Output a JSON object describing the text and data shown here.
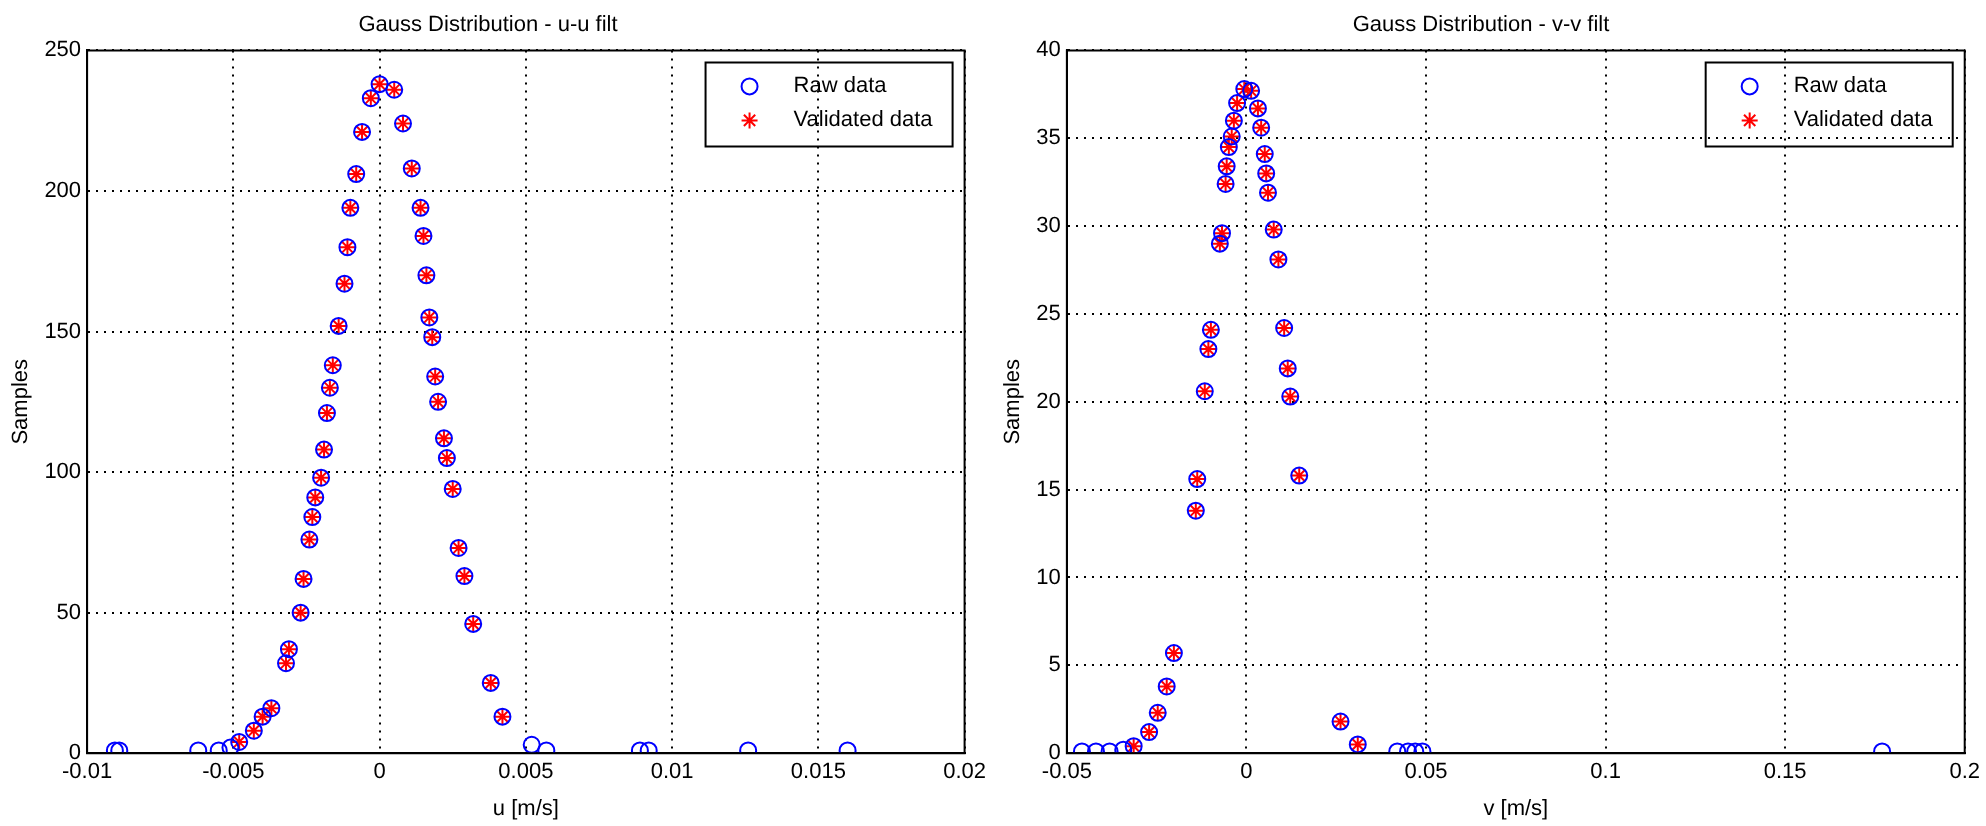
{
  "chart_data": [
    {
      "type": "scatter",
      "title": "Gauss Distribution - u-u filt",
      "xlabel": "u [m/s]",
      "ylabel": "Samples",
      "xlim": [
        -0.01,
        0.02
      ],
      "xticks": [
        -0.01,
        -0.005,
        0,
        0.005,
        0.01,
        0.015,
        0.02
      ],
      "ylim": [
        0,
        250
      ],
      "yticks": [
        0,
        50,
        100,
        150,
        200,
        250
      ],
      "grid": true,
      "legend": "top right",
      "series": [
        {
          "name": "Raw data",
          "color": "#0000ff",
          "marker": "circle",
          "x": [
            -0.00905,
            -0.0089,
            -0.0062,
            -0.0055,
            -0.0051,
            -0.0048,
            -0.0043,
            -0.004,
            -0.0037,
            -0.0032,
            -0.0031,
            -0.0027,
            -0.0026,
            -0.0024,
            -0.0023,
            -0.0022,
            -0.002,
            -0.0019,
            -0.0018,
            -0.0017,
            -0.0016,
            -0.0014,
            -0.0012,
            -0.0011,
            -0.001,
            -0.0008,
            -0.0006,
            -0.0003,
            0,
            0.0005,
            0.0008,
            0.0011,
            0.0014,
            0.0015,
            0.0016,
            0.0017,
            0.0018,
            0.0019,
            0.002,
            0.0022,
            0.0023,
            0.0025,
            0.0027,
            0.0029,
            0.0032,
            0.0038,
            0.0042,
            0.0052,
            0.0057,
            0.0089,
            0.0092,
            0.0126,
            0.016
          ],
          "values": [
            1,
            1,
            1,
            1,
            2,
            4,
            8,
            13,
            16,
            32,
            37,
            50,
            62,
            76,
            84,
            91,
            98,
            108,
            121,
            130,
            138,
            152,
            167,
            180,
            194,
            206,
            221,
            233,
            238,
            236,
            224,
            208,
            194,
            184,
            170,
            155,
            148,
            134,
            125,
            112,
            105,
            94,
            73,
            63,
            46,
            25,
            13,
            3,
            1,
            1,
            1,
            1,
            1
          ]
        },
        {
          "name": "Validated data",
          "color": "#ff0000",
          "marker": "cross",
          "x": [
            -0.0048,
            -0.0043,
            -0.004,
            -0.0037,
            -0.0032,
            -0.0031,
            -0.0027,
            -0.0026,
            -0.0024,
            -0.0023,
            -0.0022,
            -0.002,
            -0.0019,
            -0.0018,
            -0.0017,
            -0.0016,
            -0.0014,
            -0.0012,
            -0.0011,
            -0.001,
            -0.0008,
            -0.0006,
            -0.0003,
            0,
            0.0005,
            0.0008,
            0.0011,
            0.0014,
            0.0015,
            0.0016,
            0.0017,
            0.0018,
            0.0019,
            0.002,
            0.0022,
            0.0023,
            0.0025,
            0.0027,
            0.0029,
            0.0032,
            0.0038,
            0.0042
          ],
          "values": [
            4,
            8,
            13,
            16,
            32,
            37,
            50,
            62,
            76,
            84,
            91,
            98,
            108,
            121,
            130,
            138,
            152,
            167,
            180,
            194,
            206,
            221,
            233,
            238,
            236,
            224,
            208,
            194,
            184,
            170,
            155,
            148,
            134,
            125,
            112,
            105,
            94,
            73,
            63,
            46,
            25,
            13
          ]
        }
      ]
    },
    {
      "type": "scatter",
      "title": "Gauss Distribution - v-v filt",
      "xlabel": "v [m/s]",
      "ylabel": "Samples",
      "xlim": [
        -0.05,
        0.2
      ],
      "xticks": [
        -0.05,
        0,
        0.05,
        0.1,
        0.15,
        0.2
      ],
      "ylim": [
        0,
        40
      ],
      "yticks": [
        0,
        5,
        10,
        15,
        20,
        25,
        30,
        35,
        40
      ],
      "grid": true,
      "legend": "top right",
      "series": [
        {
          "name": "Raw data",
          "color": "#0000ff",
          "marker": "circle",
          "x": [
            -0.0458,
            -0.0419,
            -0.0381,
            -0.0343,
            -0.0314,
            -0.0271,
            -0.0247,
            -0.0222,
            -0.0202,
            -0.0141,
            -0.0137,
            -0.0116,
            -0.0106,
            -0.0099,
            -0.0074,
            -0.0068,
            -0.0058,
            -0.0055,
            -0.0049,
            -0.0041,
            -0.0035,
            -0.0026,
            -0.0006,
            0.0013,
            0.0032,
            0.0041,
            0.0051,
            0.0055,
            0.006,
            0.0076,
            0.0089,
            0.0105,
            0.0115,
            0.0122,
            0.0147,
            0.0262,
            0.031,
            0.042,
            0.045,
            0.047,
            0.049,
            0.177
          ],
          "values": [
            0.1,
            0.1,
            0.1,
            0.2,
            0.4,
            1.2,
            2.3,
            3.8,
            5.7,
            13.8,
            15.6,
            20.6,
            23,
            24.1,
            29,
            29.6,
            32.4,
            33.4,
            34.5,
            35.1,
            36,
            37,
            37.8,
            37.7,
            36.7,
            35.6,
            34.1,
            33,
            31.9,
            29.8,
            28.1,
            24.2,
            21.9,
            20.3,
            15.8,
            1.8,
            0.5,
            0.1,
            0.1,
            0.1,
            0.1,
            0.1
          ]
        },
        {
          "name": "Validated data",
          "color": "#ff0000",
          "marker": "cross",
          "x": [
            -0.0314,
            -0.0271,
            -0.0247,
            -0.0222,
            -0.0202,
            -0.0141,
            -0.0137,
            -0.0116,
            -0.0106,
            -0.0099,
            -0.0074,
            -0.0068,
            -0.0058,
            -0.0055,
            -0.0049,
            -0.0041,
            -0.0035,
            -0.0026,
            -0.0006,
            0.0013,
            0.0032,
            0.0041,
            0.0051,
            0.0055,
            0.006,
            0.0076,
            0.0089,
            0.0105,
            0.0115,
            0.0122,
            0.0147,
            0.0262,
            0.031
          ],
          "values": [
            0.4,
            1.2,
            2.3,
            3.8,
            5.7,
            13.8,
            15.6,
            20.6,
            23,
            24.1,
            29,
            29.6,
            32.4,
            33.4,
            34.5,
            35.1,
            36,
            37,
            37.8,
            37.7,
            36.7,
            35.6,
            34.1,
            33,
            31.9,
            29.8,
            28.1,
            24.2,
            21.9,
            20.3,
            15.8,
            1.8,
            0.5
          ]
        }
      ]
    }
  ]
}
